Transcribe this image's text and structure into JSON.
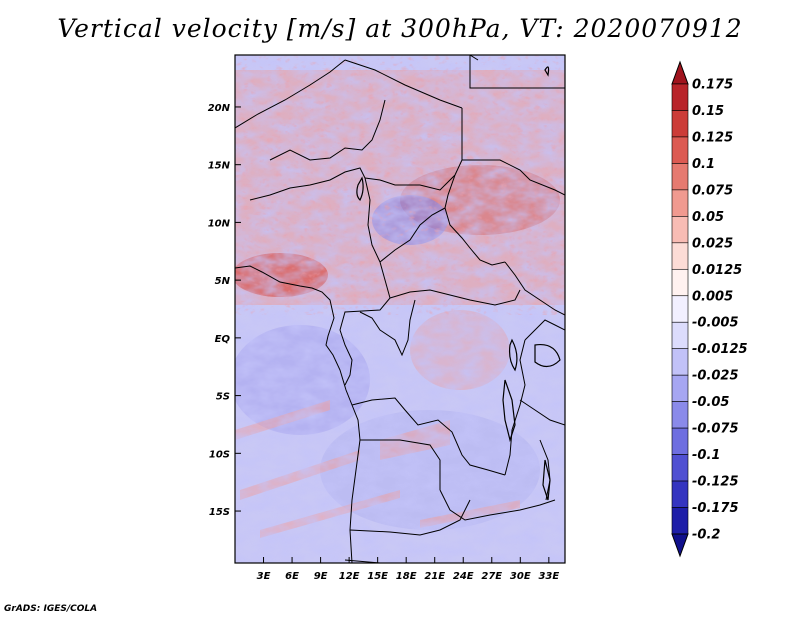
{
  "title": "Vertical velocity [m/s] at 300hPa, VT: 2020070912",
  "credit": "GrADS: IGES/COLA",
  "map": {
    "lat_range": [
      -19.5,
      24.5
    ],
    "lon_range": [
      0,
      34.7
    ],
    "lat_ticks": [
      {
        "value": 20,
        "label": "20N"
      },
      {
        "value": 15,
        "label": "15N"
      },
      {
        "value": 10,
        "label": "10N"
      },
      {
        "value": 5,
        "label": "5N"
      },
      {
        "value": 0,
        "label": "EQ"
      },
      {
        "value": -5,
        "label": "5S"
      },
      {
        "value": -10,
        "label": "10S"
      },
      {
        "value": -15,
        "label": "15S"
      }
    ],
    "lon_ticks": [
      {
        "value": 3,
        "label": "3E"
      },
      {
        "value": 6,
        "label": "6E"
      },
      {
        "value": 9,
        "label": "9E"
      },
      {
        "value": 12,
        "label": "12E"
      },
      {
        "value": 15,
        "label": "15E"
      },
      {
        "value": 18,
        "label": "18E"
      },
      {
        "value": 21,
        "label": "21E"
      },
      {
        "value": 24,
        "label": "24E"
      },
      {
        "value": 27,
        "label": "27E"
      },
      {
        "value": 30,
        "label": "30E"
      },
      {
        "value": 33,
        "label": "33E"
      }
    ]
  },
  "colorbar": {
    "labels": [
      "0.175",
      "0.15",
      "0.125",
      "0.1",
      "0.075",
      "0.05",
      "0.025",
      "0.0125",
      "0.005",
      "-0.005",
      "-0.0125",
      "-0.025",
      "-0.05",
      "-0.075",
      "-0.1",
      "-0.125",
      "-0.175",
      "-0.2"
    ],
    "colors": [
      "#a0141e",
      "#b8242a",
      "#cc3c38",
      "#dc5a52",
      "#e67a70",
      "#f09a90",
      "#f8bcb4",
      "#fcdcd6",
      "#fff2f0",
      "#f2f0ff",
      "#dcdcfc",
      "#c2c2f8",
      "#a6a6f2",
      "#8a8aea",
      "#6e6ee0",
      "#5050d2",
      "#3434c0",
      "#1e1ea8",
      "#10108c"
    ]
  }
}
